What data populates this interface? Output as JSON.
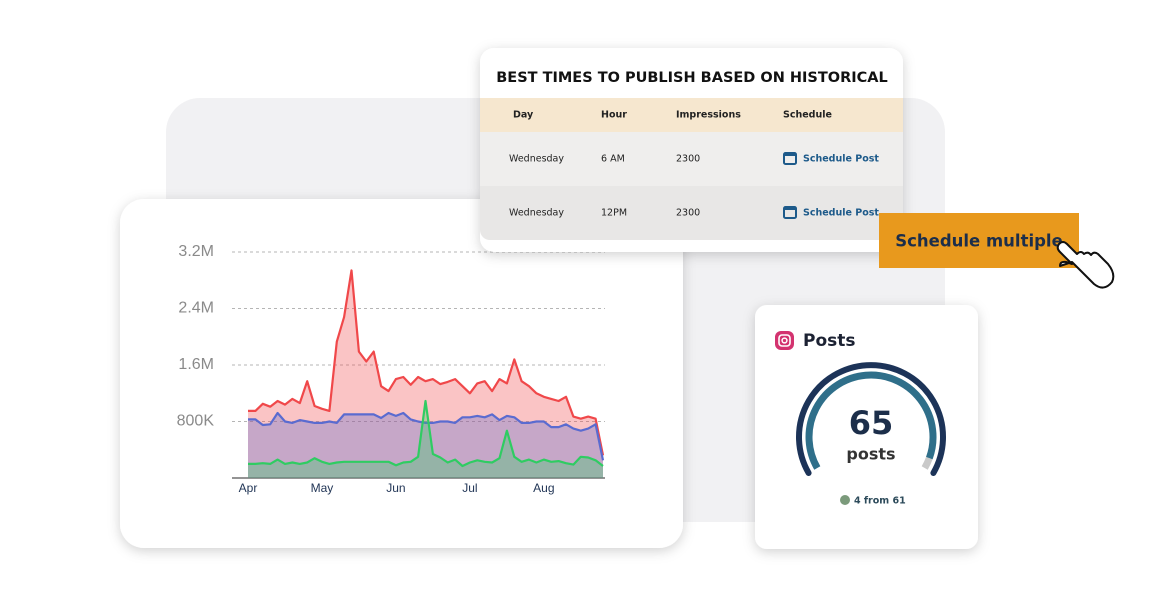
{
  "chart_data": {
    "type": "area",
    "categories": [
      "Apr",
      null,
      null,
      null,
      null,
      null,
      null,
      null,
      null,
      null,
      "May",
      null,
      null,
      null,
      null,
      null,
      null,
      null,
      null,
      null,
      "Jun",
      null,
      null,
      null,
      null,
      null,
      null,
      null,
      null,
      null,
      "Jul",
      null,
      null,
      null,
      null,
      null,
      null,
      null,
      null,
      null,
      "Aug",
      null,
      null,
      null,
      null,
      null,
      null,
      null,
      null
    ],
    "series": [
      {
        "color": "#f0484a",
        "values": [
          950000,
          950000,
          1050000,
          1010000,
          1090000,
          1040000,
          1120000,
          1060000,
          1370000,
          1020000,
          980000,
          950000,
          1930000,
          2280000,
          2940000,
          1790000,
          1650000,
          1790000,
          1300000,
          1230000,
          1400000,
          1430000,
          1320000,
          1430000,
          1370000,
          1400000,
          1330000,
          1360000,
          1400000,
          1300000,
          1200000,
          1340000,
          1370000,
          1230000,
          1400000,
          1340000,
          1680000,
          1370000,
          1300000,
          1200000,
          1150000,
          1120000,
          1090000,
          1150000,
          870000,
          840000,
          870000,
          840000,
          320000
        ]
      },
      {
        "color": "#5a6bd0",
        "values": [
          830000,
          830000,
          750000,
          760000,
          920000,
          800000,
          780000,
          820000,
          800000,
          780000,
          780000,
          800000,
          780000,
          900000,
          900000,
          900000,
          900000,
          900000,
          850000,
          920000,
          880000,
          920000,
          830000,
          800000,
          780000,
          780000,
          800000,
          800000,
          780000,
          860000,
          860000,
          880000,
          860000,
          900000,
          820000,
          880000,
          860000,
          780000,
          780000,
          800000,
          800000,
          720000,
          720000,
          760000,
          700000,
          670000,
          700000,
          760000,
          250000
        ]
      },
      {
        "color": "#2fcc62",
        "values": [
          200000,
          200000,
          210000,
          200000,
          260000,
          200000,
          220000,
          200000,
          220000,
          280000,
          230000,
          200000,
          220000,
          230000,
          230000,
          230000,
          230000,
          230000,
          230000,
          230000,
          180000,
          220000,
          230000,
          300000,
          1090000,
          340000,
          290000,
          220000,
          260000,
          170000,
          220000,
          250000,
          230000,
          220000,
          280000,
          670000,
          300000,
          230000,
          260000,
          220000,
          260000,
          230000,
          240000,
          210000,
          190000,
          300000,
          290000,
          250000,
          170000
        ]
      }
    ],
    "ylim": [
      0,
      3200000
    ],
    "yticks": [
      {
        "value": 800000,
        "label": "800K"
      },
      {
        "value": 1600000,
        "label": "1.6M"
      },
      {
        "value": 2400000,
        "label": "2.4M"
      },
      {
        "value": 3200000,
        "label": "3.2M"
      }
    ],
    "grid": true
  },
  "table": {
    "title": "BEST TIMES TO PUBLISH BASED ON HISTORICAL",
    "headers": [
      "Day",
      "Hour",
      "Impressions",
      "Schedule"
    ],
    "rows": [
      [
        "Wednesday",
        "6 AM",
        "2300",
        "Schedule Post"
      ],
      [
        "Wednesday",
        "12PM",
        "2300",
        "Schedule Post"
      ]
    ]
  },
  "button": "Schedule multiple",
  "posts": {
    "title": "Posts",
    "value": 65,
    "unit": "posts",
    "change": "4 from 61"
  }
}
